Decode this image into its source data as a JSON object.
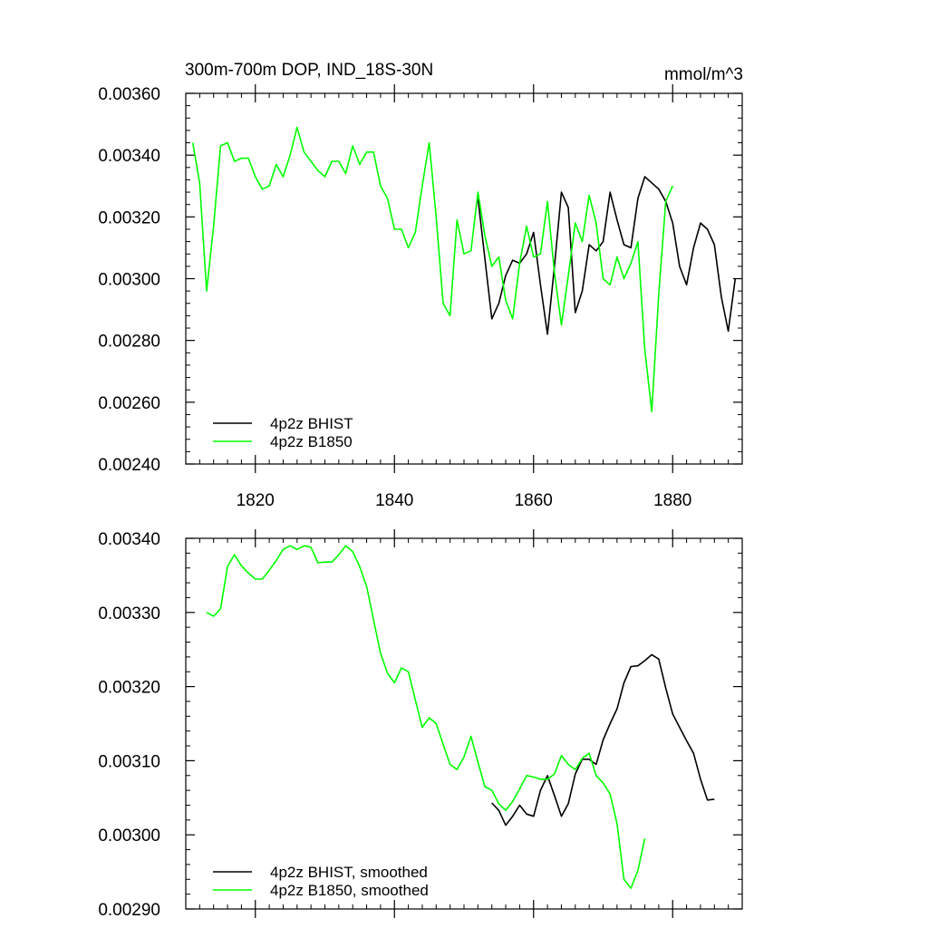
{
  "chart_data": [
    {
      "type": "line",
      "title": "300m-700m DOP, IND_18S-30N",
      "units": "mmol/m^3",
      "xlim": [
        1810,
        1890
      ],
      "ylim": [
        0.0024,
        0.0036
      ],
      "xticks": [
        1820,
        1840,
        1860,
        1880
      ],
      "xtick_labels": [
        "1820",
        "1840",
        "1860",
        "1880"
      ],
      "yticks": [
        0.0024,
        0.0026,
        0.0028,
        0.003,
        0.0032,
        0.0034,
        0.0036
      ],
      "ytick_labels": [
        "0.00240",
        "0.00260",
        "0.00280",
        "0.00300",
        "0.00320",
        "0.00340",
        "0.00360"
      ],
      "legend_position": "bottom-left",
      "series": [
        {
          "name": "4p2z BHIST",
          "color": "#000000",
          "x": [
            1852,
            1854,
            1855,
            1856,
            1857,
            1858,
            1859,
            1860,
            1861,
            1862,
            1863,
            1864,
            1865,
            1866,
            1867,
            1868,
            1869,
            1870,
            1871,
            1872,
            1873,
            1874,
            1875,
            1876,
            1877,
            1878,
            1879,
            1880,
            1881,
            1882,
            1883,
            1884,
            1885,
            1886,
            1887,
            1888,
            1889
          ],
          "y": [
            0.00326,
            0.00287,
            0.00292,
            0.00301,
            0.00306,
            0.00305,
            0.00308,
            0.00315,
            0.00298,
            0.00282,
            0.00304,
            0.00328,
            0.00323,
            0.00289,
            0.00296,
            0.00311,
            0.00309,
            0.00312,
            0.00328,
            0.00319,
            0.00311,
            0.0031,
            0.00326,
            0.00333,
            0.00331,
            0.00329,
            0.00325,
            0.00318,
            0.00304,
            0.00298,
            0.0031,
            0.00318,
            0.00316,
            0.00311,
            0.00294,
            0.00283,
            0.003
          ]
        },
        {
          "name": "4p2z B1850",
          "color": "#00ff00",
          "x": [
            1811,
            1812,
            1813,
            1814,
            1815,
            1816,
            1817,
            1818,
            1819,
            1820,
            1821,
            1822,
            1823,
            1824,
            1825,
            1826,
            1827,
            1828,
            1829,
            1830,
            1831,
            1832,
            1833,
            1834,
            1835,
            1836,
            1837,
            1838,
            1839,
            1840,
            1841,
            1842,
            1843,
            1844,
            1845,
            1846,
            1847,
            1848,
            1849,
            1850,
            1851,
            1852,
            1853,
            1854,
            1855,
            1856,
            1857,
            1858,
            1859,
            1860,
            1861,
            1862,
            1863,
            1864,
            1865,
            1866,
            1867,
            1868,
            1869,
            1870,
            1871,
            1872,
            1873,
            1874,
            1875,
            1876,
            1877,
            1878,
            1879,
            1880
          ],
          "y": [
            0.00344,
            0.00331,
            0.00296,
            0.00317,
            0.00343,
            0.00344,
            0.00338,
            0.00339,
            0.00339,
            0.00333,
            0.00329,
            0.0033,
            0.00337,
            0.00333,
            0.0034,
            0.00349,
            0.00341,
            0.00338,
            0.00335,
            0.00333,
            0.00338,
            0.00338,
            0.00334,
            0.00343,
            0.00337,
            0.00341,
            0.00341,
            0.0033,
            0.00326,
            0.00316,
            0.00316,
            0.0031,
            0.00315,
            0.0033,
            0.00344,
            0.0032,
            0.00292,
            0.00288,
            0.00319,
            0.00308,
            0.00309,
            0.00328,
            0.00314,
            0.00304,
            0.00307,
            0.00293,
            0.00287,
            0.00305,
            0.00317,
            0.00307,
            0.00308,
            0.00325,
            0.00302,
            0.00285,
            0.00301,
            0.00318,
            0.00312,
            0.00327,
            0.00318,
            0.003,
            0.00298,
            0.00307,
            0.003,
            0.00305,
            0.00312,
            0.00277,
            0.00257,
            0.00295,
            0.00325,
            0.0033
          ]
        }
      ]
    },
    {
      "type": "line",
      "xlim": [
        1810,
        1890
      ],
      "ylim": [
        0.0029,
        0.0034
      ],
      "xticks": [
        1820,
        1840,
        1860,
        1880
      ],
      "yticks": [
        0.0029,
        0.003,
        0.0031,
        0.0032,
        0.0033,
        0.0034
      ],
      "ytick_labels": [
        "0.00290",
        "0.00300",
        "0.00310",
        "0.00320",
        "0.00330",
        "0.00340"
      ],
      "legend_position": "bottom-left",
      "series": [
        {
          "name": "4p2z BHIST, smoothed",
          "color": "#000000",
          "x": [
            1854,
            1855,
            1856,
            1857,
            1858,
            1859,
            1860,
            1861,
            1862,
            1863,
            1864,
            1865,
            1866,
            1867,
            1868,
            1869,
            1870,
            1871,
            1872,
            1873,
            1874,
            1875,
            1876,
            1877,
            1878,
            1879,
            1880,
            1881,
            1882,
            1883,
            1884,
            1885,
            1886
          ],
          "y": [
            0.003043,
            0.003033,
            0.003013,
            0.003025,
            0.00304,
            0.003028,
            0.003025,
            0.00306,
            0.00308,
            0.003053,
            0.003025,
            0.003042,
            0.003082,
            0.003102,
            0.003102,
            0.003095,
            0.003128,
            0.00315,
            0.00317,
            0.003205,
            0.003227,
            0.003228,
            0.003235,
            0.003243,
            0.003237,
            0.003198,
            0.003163,
            0.003145,
            0.003127,
            0.00311,
            0.003075,
            0.003047,
            0.003048
          ]
        },
        {
          "name": "4p2z B1850, smoothed",
          "color": "#00ff00",
          "x": [
            1813,
            1814,
            1815,
            1816,
            1817,
            1818,
            1819,
            1820,
            1821,
            1822,
            1823,
            1824,
            1825,
            1826,
            1827,
            1828,
            1829,
            1830,
            1831,
            1832,
            1833,
            1834,
            1835,
            1836,
            1837,
            1838,
            1839,
            1840,
            1841,
            1842,
            1843,
            1844,
            1845,
            1846,
            1847,
            1848,
            1849,
            1850,
            1851,
            1852,
            1853,
            1854,
            1855,
            1856,
            1857,
            1858,
            1859,
            1860,
            1861,
            1862,
            1863,
            1864,
            1865,
            1866,
            1867,
            1868,
            1869,
            1870,
            1871,
            1872,
            1873,
            1874,
            1875,
            1876,
            1877
          ],
          "y": [
            0.0033,
            0.003295,
            0.003305,
            0.003362,
            0.003378,
            0.003363,
            0.003353,
            0.003345,
            0.003345,
            0.003357,
            0.00337,
            0.003385,
            0.00339,
            0.003385,
            0.00339,
            0.003388,
            0.003367,
            0.003368,
            0.003368,
            0.003378,
            0.00339,
            0.003382,
            0.003362,
            0.003335,
            0.00329,
            0.003245,
            0.003218,
            0.003205,
            0.003225,
            0.00322,
            0.003182,
            0.003145,
            0.003158,
            0.00315,
            0.003122,
            0.003095,
            0.003088,
            0.003105,
            0.003133,
            0.003098,
            0.003065,
            0.00306,
            0.003042,
            0.003033,
            0.003045,
            0.003062,
            0.00308,
            0.003078,
            0.003075,
            0.003075,
            0.003082,
            0.003107,
            0.003095,
            0.003088,
            0.003103,
            0.00311,
            0.00308,
            0.00307,
            0.003055,
            0.003015,
            0.00294,
            0.002928,
            0.002952,
            0.002995,
            null
          ]
        }
      ]
    }
  ]
}
